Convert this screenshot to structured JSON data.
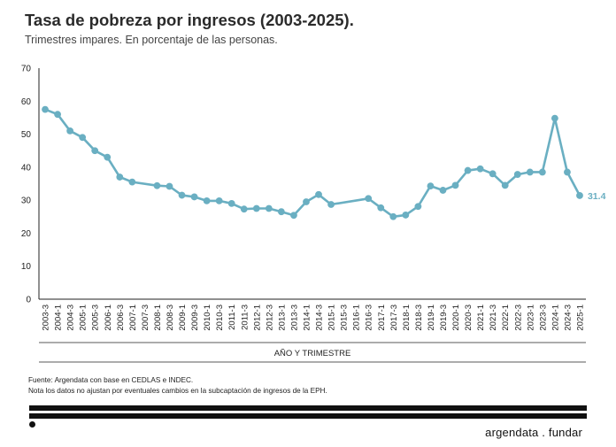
{
  "header": {
    "title": "Tasa de pobreza por ingresos (2003-2025).",
    "subtitle": "Trimestres impares. En porcentaje de las personas."
  },
  "footer": {
    "source": "Fuente: Argendata con base en CEDLAS e INDEC.",
    "note": "Nota los datos no ajustan por eventuales cambios en la subcaptación de ingresos de la EPH.",
    "brand": "argendata . fundar"
  },
  "colors": {
    "line": "#6aafc2",
    "axis": "#222222",
    "text": "#222222"
  },
  "chart_data": {
    "type": "line",
    "title": "Tasa de pobreza por ingresos (2003-2025).",
    "subtitle": "Trimestres impares. En porcentaje de las personas.",
    "xlabel": "AÑO Y TRIMESTRE",
    "ylabel": "",
    "ylim": [
      0,
      70
    ],
    "yticks": [
      0,
      10,
      20,
      30,
      40,
      50,
      60,
      70
    ],
    "grid": false,
    "categories": [
      "2003-3",
      "2004-1",
      "2004-3",
      "2005-1",
      "2005-3",
      "2006-1",
      "2006-3",
      "2007-1",
      "2007-3",
      "2008-1",
      "2008-3",
      "2009-1",
      "2009-3",
      "2010-1",
      "2010-3",
      "2011-1",
      "2011-3",
      "2012-1",
      "2012-3",
      "2013-1",
      "2013-3",
      "2014-1",
      "2014-3",
      "2015-1",
      "2015-3",
      "2016-1",
      "2016-3",
      "2017-1",
      "2017-3",
      "2018-1",
      "2018-3",
      "2019-1",
      "2019-3",
      "2020-1",
      "2020-3",
      "2021-1",
      "2021-3",
      "2022-1",
      "2022-3",
      "2023-1",
      "2023-3",
      "2024-1",
      "2024-3",
      "2025-1"
    ],
    "series": [
      {
        "values": [
          57.5,
          56.0,
          51.0,
          49.0,
          45.0,
          43.0,
          37.0,
          35.5,
          null,
          34.4,
          34.2,
          31.5,
          31.0,
          29.8,
          29.8,
          29.0,
          27.3,
          27.5,
          27.5,
          26.5,
          25.4,
          29.5,
          31.7,
          28.7,
          null,
          null,
          30.5,
          27.7,
          25.0,
          25.5,
          28.1,
          34.3,
          33.0,
          34.5,
          39.0,
          39.5,
          38.0,
          34.5,
          37.8,
          38.5,
          38.5,
          54.8,
          38.5,
          31.4
        ],
        "last_label": "31.4",
        "color": "#6aafc2"
      }
    ]
  }
}
